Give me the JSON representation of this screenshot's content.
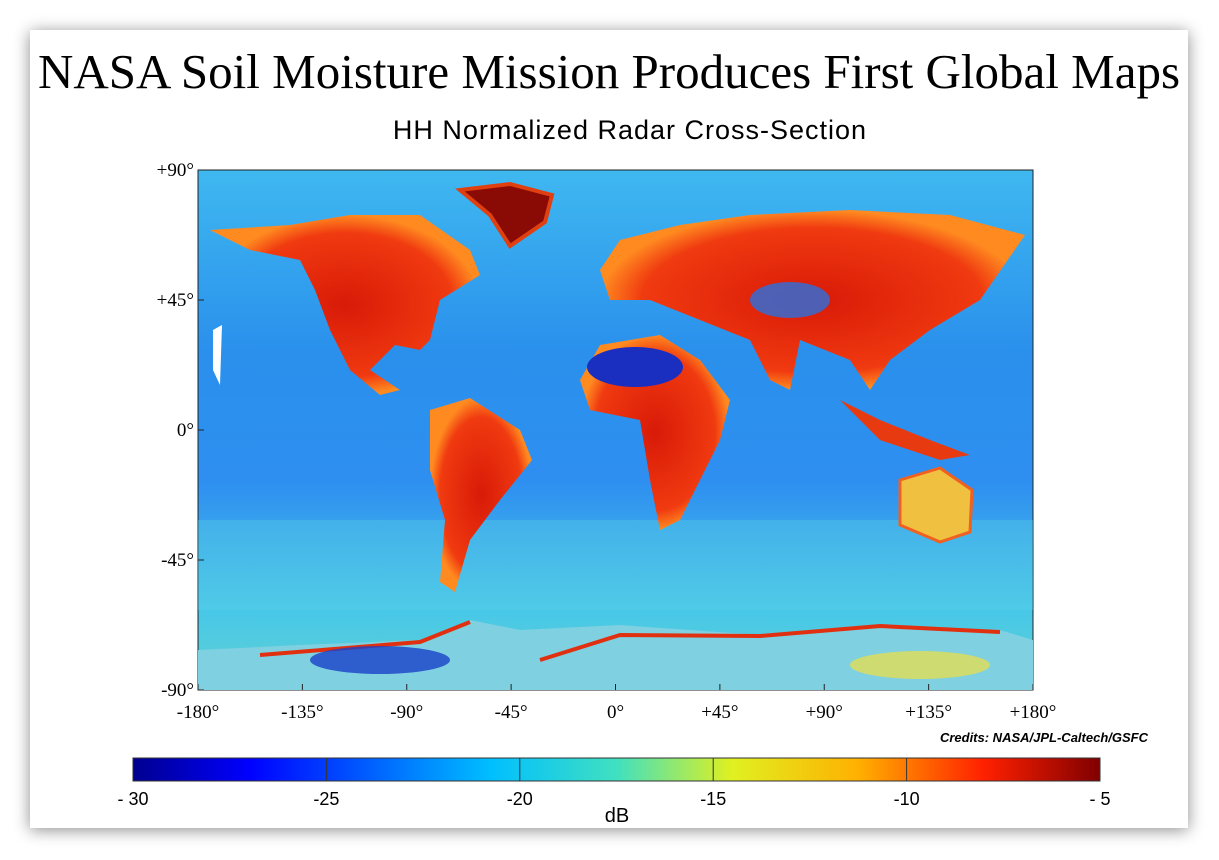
{
  "title": "NASA Soil Moisture Mission Produces First Global Maps",
  "subtitle": "HH Normalized Radar Cross-Section",
  "map": {
    "xlim": [
      -180,
      180
    ],
    "ylim": [
      -90,
      90
    ],
    "xticks": [
      {
        "value": -180,
        "label": "-180°"
      },
      {
        "value": -135,
        "label": "-135°"
      },
      {
        "value": -90,
        "label": "-90°"
      },
      {
        "value": -45,
        "label": "-45°"
      },
      {
        "value": 0,
        "label": "0°"
      },
      {
        "value": 45,
        "label": "+45°"
      },
      {
        "value": 90,
        "label": "+90°"
      },
      {
        "value": 135,
        "label": "+135°"
      },
      {
        "value": 180,
        "label": "+180°"
      }
    ],
    "yticks": [
      {
        "value": 90,
        "label": "+90°"
      },
      {
        "value": 45,
        "label": "+45°"
      },
      {
        "value": 0,
        "label": "0°"
      },
      {
        "value": -45,
        "label": "-45°"
      },
      {
        "value": -90,
        "label": "-90°"
      }
    ]
  },
  "credits": "Credits: NASA/JPL-Caltech/GSFC",
  "colorbar": {
    "lim": [
      -30,
      -5
    ],
    "ticks": [
      {
        "value": -30,
        "label": "- 30"
      },
      {
        "value": -25,
        "label": "-25"
      },
      {
        "value": -20,
        "label": "-20"
      },
      {
        "value": -15,
        "label": "-15"
      },
      {
        "value": -10,
        "label": "-10"
      },
      {
        "value": -5,
        "label": "- 5"
      }
    ],
    "label": "dB"
  }
}
